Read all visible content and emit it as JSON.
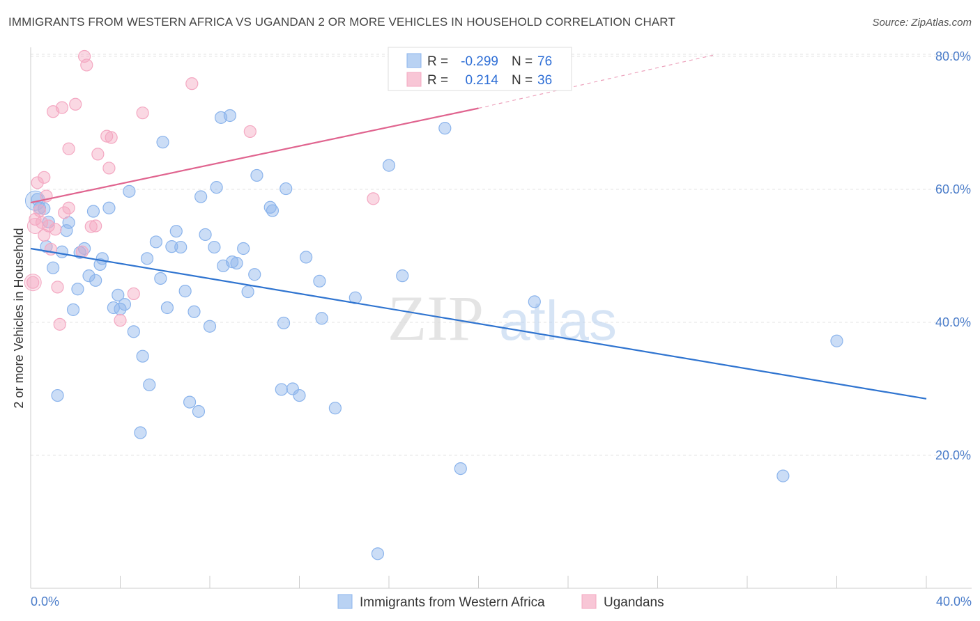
{
  "title": "IMMIGRANTS FROM WESTERN AFRICA VS UGANDAN 2 OR MORE VEHICLES IN HOUSEHOLD CORRELATION CHART",
  "source": "Source: ZipAtlas.com",
  "watermark": {
    "zip": "ZIP",
    "atlas": "atlas"
  },
  "chart_data": {
    "type": "scatter",
    "title": "IMMIGRANTS FROM WESTERN AFRICA VS UGANDAN 2 OR MORE VEHICLES IN HOUSEHOLD CORRELATION CHART",
    "xlabel": "",
    "ylabel": "2 or more Vehicles in Household",
    "xlim": [
      0,
      40
    ],
    "ylim": [
      0,
      82
    ],
    "x_tick_labels": {
      "left": "0.0%",
      "right": "40.0%"
    },
    "y_ticks": [
      {
        "value": 20,
        "label": "20.0%"
      },
      {
        "value": 40,
        "label": "40.0%"
      },
      {
        "value": 60,
        "label": "60.0%"
      },
      {
        "value": 80,
        "label": "80.0%"
      }
    ],
    "grid": true,
    "legend_position": "top-center",
    "stats": [
      {
        "r_label": "R =",
        "r_value": "-0.299",
        "n_label": "N =",
        "n_value": "76"
      },
      {
        "r_label": "R =",
        "r_value": "0.214",
        "n_label": "N =",
        "n_value": "36"
      }
    ],
    "series": [
      {
        "name": "Immigrants from Western Africa",
        "color": "#8bb4ec",
        "line_color": "#2f74d0",
        "trend": {
          "x0": 0,
          "y0": 51.1,
          "x1": 40,
          "y1": 28.5,
          "dashed": false
        },
        "points": [
          [
            0.3,
            58.5
          ],
          [
            0.4,
            57.2
          ],
          [
            0.6,
            57.1
          ],
          [
            0.7,
            51.4
          ],
          [
            0.8,
            55.1
          ],
          [
            1.0,
            48.2
          ],
          [
            1.2,
            29.0
          ],
          [
            1.4,
            50.6
          ],
          [
            1.6,
            53.8
          ],
          [
            1.7,
            55.0
          ],
          [
            2.1,
            45.0
          ],
          [
            1.9,
            41.9
          ],
          [
            2.2,
            50.5
          ],
          [
            2.4,
            51.1
          ],
          [
            2.6,
            47.0
          ],
          [
            2.8,
            56.7
          ],
          [
            2.9,
            46.3
          ],
          [
            3.1,
            48.7
          ],
          [
            3.2,
            49.6
          ],
          [
            3.5,
            57.2
          ],
          [
            3.7,
            42.2
          ],
          [
            3.9,
            44.1
          ],
          [
            4.0,
            42.0
          ],
          [
            4.2,
            42.7
          ],
          [
            4.4,
            59.7
          ],
          [
            4.6,
            38.6
          ],
          [
            4.9,
            23.4
          ],
          [
            5.0,
            34.9
          ],
          [
            5.2,
            49.6
          ],
          [
            5.3,
            30.6
          ],
          [
            5.6,
            52.1
          ],
          [
            5.8,
            46.6
          ],
          [
            5.9,
            67.1
          ],
          [
            6.1,
            42.2
          ],
          [
            6.3,
            51.4
          ],
          [
            6.5,
            53.7
          ],
          [
            6.7,
            51.3
          ],
          [
            6.9,
            44.7
          ],
          [
            7.1,
            28.0
          ],
          [
            7.3,
            41.6
          ],
          [
            7.5,
            26.6
          ],
          [
            7.6,
            58.9
          ],
          [
            7.8,
            53.2
          ],
          [
            8.0,
            39.4
          ],
          [
            8.2,
            51.3
          ],
          [
            8.3,
            60.3
          ],
          [
            8.5,
            70.8
          ],
          [
            8.6,
            48.5
          ],
          [
            8.9,
            71.1
          ],
          [
            9.0,
            49.1
          ],
          [
            9.2,
            48.9
          ],
          [
            9.5,
            51.1
          ],
          [
            9.7,
            44.6
          ],
          [
            10.0,
            47.2
          ],
          [
            10.1,
            62.1
          ],
          [
            10.7,
            57.3
          ],
          [
            10.8,
            56.8
          ],
          [
            11.2,
            29.9
          ],
          [
            11.3,
            39.9
          ],
          [
            11.4,
            60.1
          ],
          [
            11.7,
            30.0
          ],
          [
            12.0,
            29.0
          ],
          [
            12.3,
            49.8
          ],
          [
            12.9,
            46.2
          ],
          [
            13.0,
            40.6
          ],
          [
            13.6,
            27.1
          ],
          [
            14.5,
            43.7
          ],
          [
            15.5,
            5.2
          ],
          [
            16.0,
            63.6
          ],
          [
            16.6,
            47.0
          ],
          [
            18.5,
            69.2
          ],
          [
            19.2,
            18.0
          ],
          [
            22.5,
            43.1
          ],
          [
            33.6,
            16.9
          ],
          [
            36.0,
            37.2
          ]
        ]
      },
      {
        "name": "Ugandans",
        "color": "#f4a8c2",
        "line_color": "#e0648f",
        "trend": {
          "x0": 0,
          "y0": 58.0,
          "x1": 20,
          "y1": 72.2,
          "dashed_extension_to_x": 30.5,
          "dashed_extension_to_y": 80.2
        },
        "points": [
          [
            0.1,
            46.0
          ],
          [
            0.2,
            55.5
          ],
          [
            0.3,
            61.0
          ],
          [
            0.4,
            56.8
          ],
          [
            0.5,
            55.0
          ],
          [
            0.6,
            61.8
          ],
          [
            0.6,
            53.1
          ],
          [
            0.7,
            59.0
          ],
          [
            0.8,
            54.5
          ],
          [
            0.9,
            51.0
          ],
          [
            1.0,
            71.7
          ],
          [
            1.1,
            54.0
          ],
          [
            1.2,
            45.3
          ],
          [
            1.3,
            39.7
          ],
          [
            1.5,
            56.5
          ],
          [
            1.4,
            72.3
          ],
          [
            1.7,
            57.2
          ],
          [
            1.7,
            66.1
          ],
          [
            2.0,
            72.8
          ],
          [
            2.3,
            50.6
          ],
          [
            2.4,
            80.0
          ],
          [
            2.5,
            78.7
          ],
          [
            2.7,
            54.4
          ],
          [
            2.9,
            54.5
          ],
          [
            3.0,
            65.3
          ],
          [
            3.4,
            68.0
          ],
          [
            3.5,
            63.2
          ],
          [
            3.6,
            67.8
          ],
          [
            4.0,
            40.3
          ],
          [
            4.6,
            44.3
          ],
          [
            5.0,
            71.5
          ],
          [
            7.2,
            75.9
          ],
          [
            9.8,
            68.7
          ],
          [
            15.3,
            58.6
          ]
        ]
      }
    ]
  }
}
